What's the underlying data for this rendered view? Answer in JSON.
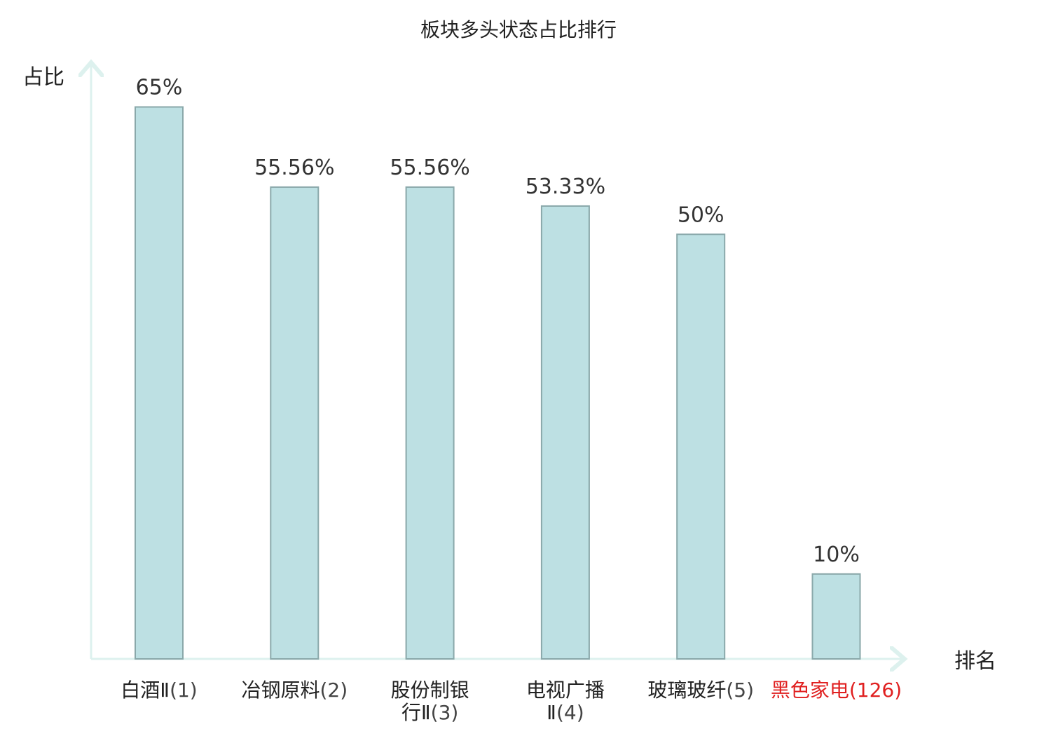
{
  "chart_data": {
    "type": "bar",
    "title": "板块多头状态占比排行",
    "ylabel": "占比",
    "xlabel": "排名",
    "ylim": [
      0,
      70
    ],
    "categories": [
      {
        "name": "白酒Ⅱ",
        "rank": "(1)",
        "highlight": false
      },
      {
        "name": "冶钢原料",
        "rank": "(2)",
        "highlight": false
      },
      {
        "name": "股份制银行Ⅱ",
        "rank": "(3)",
        "highlight": false
      },
      {
        "name": "电视广播Ⅱ",
        "rank": "(4)",
        "highlight": false
      },
      {
        "name": "玻璃玻纤",
        "rank": "(5)",
        "highlight": false
      },
      {
        "name": "黑色家电",
        "rank": "(126)",
        "highlight": true
      }
    ],
    "values": [
      65,
      55.56,
      55.56,
      53.33,
      50,
      10
    ],
    "value_labels": [
      "65%",
      "55.56%",
      "55.56%",
      "53.33%",
      "50%",
      "10%"
    ],
    "grid": false,
    "legend": "none"
  },
  "colors": {
    "bar_fill": "#bde0e3",
    "bar_stroke": "#8aa8aa",
    "axis": "#ddf1ee",
    "text": "#222222",
    "rank_text": "#444444",
    "highlight": "#e02020"
  }
}
